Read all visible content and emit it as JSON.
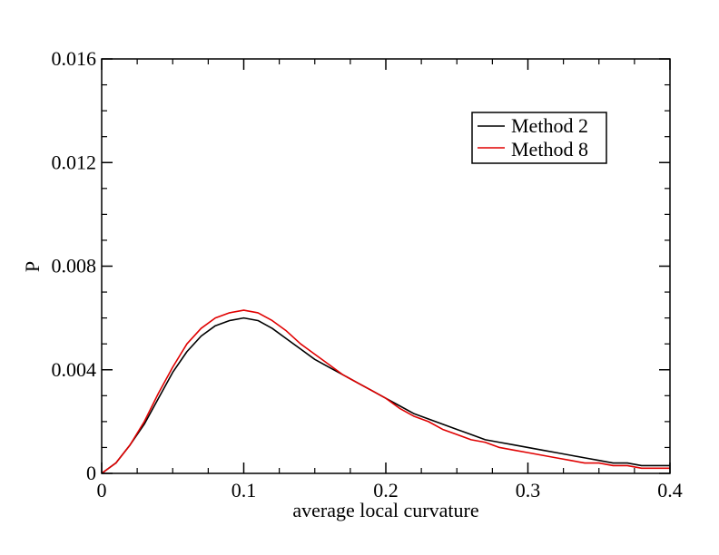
{
  "chart_data": {
    "type": "line",
    "title": "",
    "xlabel": "average local curvature",
    "ylabel": "P",
    "xlim": [
      0,
      0.4
    ],
    "ylim": [
      0,
      0.016
    ],
    "x_ticks": [
      0,
      0.1,
      0.2,
      0.3,
      0.4
    ],
    "x_tick_labels": [
      "0",
      "0.1",
      "0.2",
      "0.3",
      "0.4"
    ],
    "x_minor_step": 0.025,
    "y_ticks": [
      0,
      0.004,
      0.008,
      0.012,
      0.016
    ],
    "y_tick_labels": [
      "0",
      "0.004",
      "0.008",
      "0.012",
      "0.016"
    ],
    "y_minor_step": 0.001,
    "grid": false,
    "legend_position": "top-right",
    "x": [
      0.0,
      0.01,
      0.02,
      0.03,
      0.04,
      0.05,
      0.06,
      0.07,
      0.08,
      0.09,
      0.1,
      0.11,
      0.12,
      0.13,
      0.14,
      0.15,
      0.16,
      0.17,
      0.18,
      0.19,
      0.2,
      0.21,
      0.22,
      0.23,
      0.24,
      0.25,
      0.26,
      0.27,
      0.28,
      0.29,
      0.3,
      0.31,
      0.32,
      0.33,
      0.34,
      0.35,
      0.36,
      0.37,
      0.38,
      0.39,
      0.4
    ],
    "series": [
      {
        "name": "Method 2",
        "color": "#000000",
        "values": [
          0.0,
          0.0004,
          0.0011,
          0.0019,
          0.0029,
          0.0039,
          0.0047,
          0.0053,
          0.0057,
          0.0059,
          0.006,
          0.0059,
          0.0056,
          0.0052,
          0.0048,
          0.0044,
          0.0041,
          0.0038,
          0.0035,
          0.0032,
          0.0029,
          0.0026,
          0.0023,
          0.0021,
          0.0019,
          0.0017,
          0.0015,
          0.0013,
          0.0012,
          0.0011,
          0.001,
          0.0009,
          0.0008,
          0.0007,
          0.0006,
          0.0005,
          0.0004,
          0.0004,
          0.0003,
          0.0003,
          0.0003
        ]
      },
      {
        "name": "Method 8",
        "color": "#e00000",
        "values": [
          0.0,
          0.0004,
          0.0011,
          0.002,
          0.0031,
          0.0041,
          0.005,
          0.0056,
          0.006,
          0.0062,
          0.0063,
          0.0062,
          0.0059,
          0.0055,
          0.005,
          0.0046,
          0.0042,
          0.0038,
          0.0035,
          0.0032,
          0.0029,
          0.0025,
          0.0022,
          0.002,
          0.0017,
          0.0015,
          0.0013,
          0.0012,
          0.001,
          0.0009,
          0.0008,
          0.0007,
          0.0006,
          0.0005,
          0.0004,
          0.0004,
          0.0003,
          0.0003,
          0.0002,
          0.0002,
          0.0002
        ]
      }
    ]
  }
}
